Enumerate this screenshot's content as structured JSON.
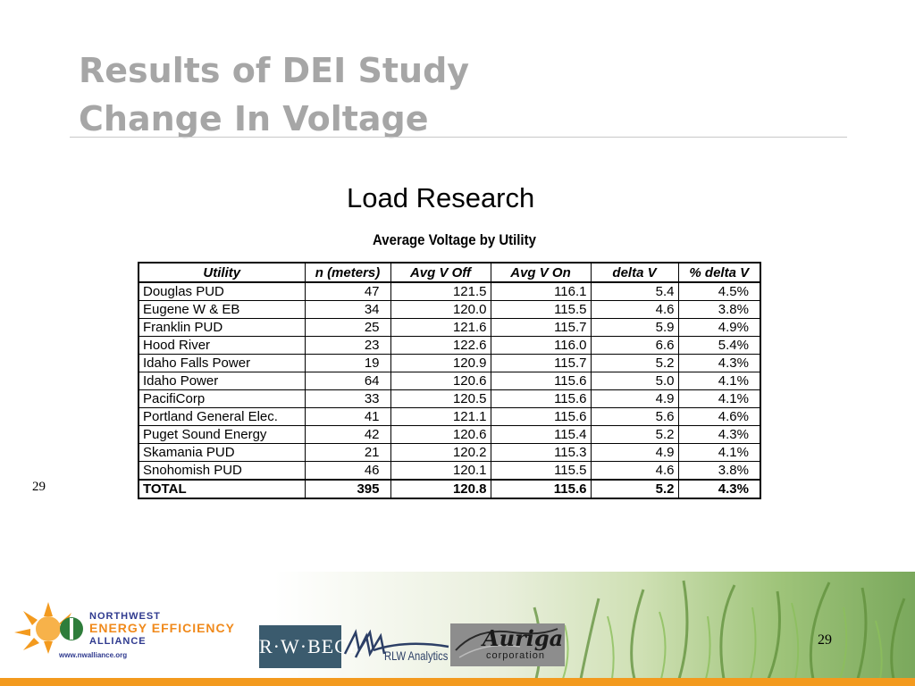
{
  "slide": {
    "title_line1": "Results of DEI Study",
    "title_line2": "Change In Voltage",
    "subtitle": "Load Research",
    "table_caption": "Average Voltage by Utility",
    "side_number": "29",
    "page_number": "29"
  },
  "table": {
    "headers": [
      "Utility",
      "n (meters)",
      "Avg V Off",
      "Avg V On",
      "delta V",
      "% delta V"
    ],
    "rows": [
      [
        "Douglas PUD",
        "47",
        "121.5",
        "116.1",
        "5.4",
        "4.5%"
      ],
      [
        "Eugene W & EB",
        "34",
        "120.0",
        "115.5",
        "4.6",
        "3.8%"
      ],
      [
        "Franklin PUD",
        "25",
        "121.6",
        "115.7",
        "5.9",
        "4.9%"
      ],
      [
        "Hood River",
        "23",
        "122.6",
        "116.0",
        "6.6",
        "5.4%"
      ],
      [
        "Idaho Falls Power",
        "19",
        "120.9",
        "115.7",
        "5.2",
        "4.3%"
      ],
      [
        "Idaho Power",
        "64",
        "120.6",
        "115.6",
        "5.0",
        "4.1%"
      ],
      [
        "PacifiCorp",
        "33",
        "120.5",
        "115.6",
        "4.9",
        "4.1%"
      ],
      [
        "Portland General Elec.",
        "41",
        "121.1",
        "115.6",
        "5.6",
        "4.6%"
      ],
      [
        "Puget Sound Energy",
        "42",
        "120.6",
        "115.4",
        "5.2",
        "4.3%"
      ],
      [
        "Skamania PUD",
        "21",
        "120.2",
        "115.3",
        "4.9",
        "4.1%"
      ],
      [
        "Snohomish PUD",
        "46",
        "120.1",
        "115.5",
        "4.6",
        "3.8%"
      ]
    ],
    "total": [
      "TOTAL",
      "395",
      "120.8",
      "115.6",
      "5.2",
      "4.3%"
    ]
  },
  "footer": {
    "neea_line1": "NORTHWEST",
    "neea_line2": "ENERGY EFFICIENCY",
    "neea_line3": "ALLIANCE",
    "neea_url": "www.nwalliance.org",
    "rwbeck_logo": "R·W·BECK",
    "rlw_logo": "RLW Analytics",
    "auriga_name": "Auriga",
    "auriga_corp": "corporation",
    "colors": {
      "accent_bar": "#f39a1e",
      "title_gray": "#a6a6a6",
      "neea_blue": "#2f3a8f",
      "neea_orange": "#f08a1c"
    }
  }
}
